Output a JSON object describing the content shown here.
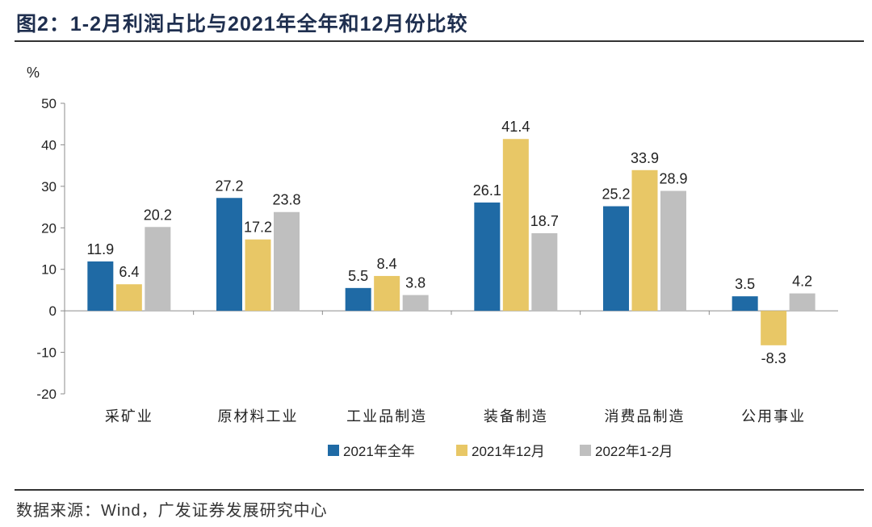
{
  "figure": {
    "title": "图2：1-2月利润占比与2021年全年和12月份比较",
    "source": "数据来源：Wind，广发证券发展研究中心"
  },
  "colors": {
    "series_2021_full": "#1f6aa5",
    "series_2021_dec": "#e8c766",
    "series_2022_jf": "#bfbfbf",
    "axis": "#8c8c8c",
    "title": "#1f2f4f"
  },
  "chart_data": {
    "type": "bar",
    "title": "1-2月利润占比与2021年全年和12月份比较",
    "ylabel": "%",
    "xlabel": "",
    "ylim": [
      -20,
      50
    ],
    "yticks": [
      -20,
      -10,
      0,
      10,
      20,
      30,
      40,
      50
    ],
    "grid": false,
    "legend": "bottom-center",
    "categories": [
      "采矿业",
      "原材料工业",
      "工业品制造",
      "装备制造",
      "消费品制造",
      "公用事业"
    ],
    "series": [
      {
        "name": "2021年全年",
        "values": [
          11.9,
          27.2,
          5.5,
          26.1,
          25.2,
          3.5
        ]
      },
      {
        "name": "2021年12月",
        "values": [
          6.4,
          17.2,
          8.4,
          41.4,
          33.9,
          -8.3
        ]
      },
      {
        "name": "2022年1-2月",
        "values": [
          20.2,
          23.8,
          3.8,
          18.7,
          28.9,
          4.2
        ]
      }
    ]
  }
}
